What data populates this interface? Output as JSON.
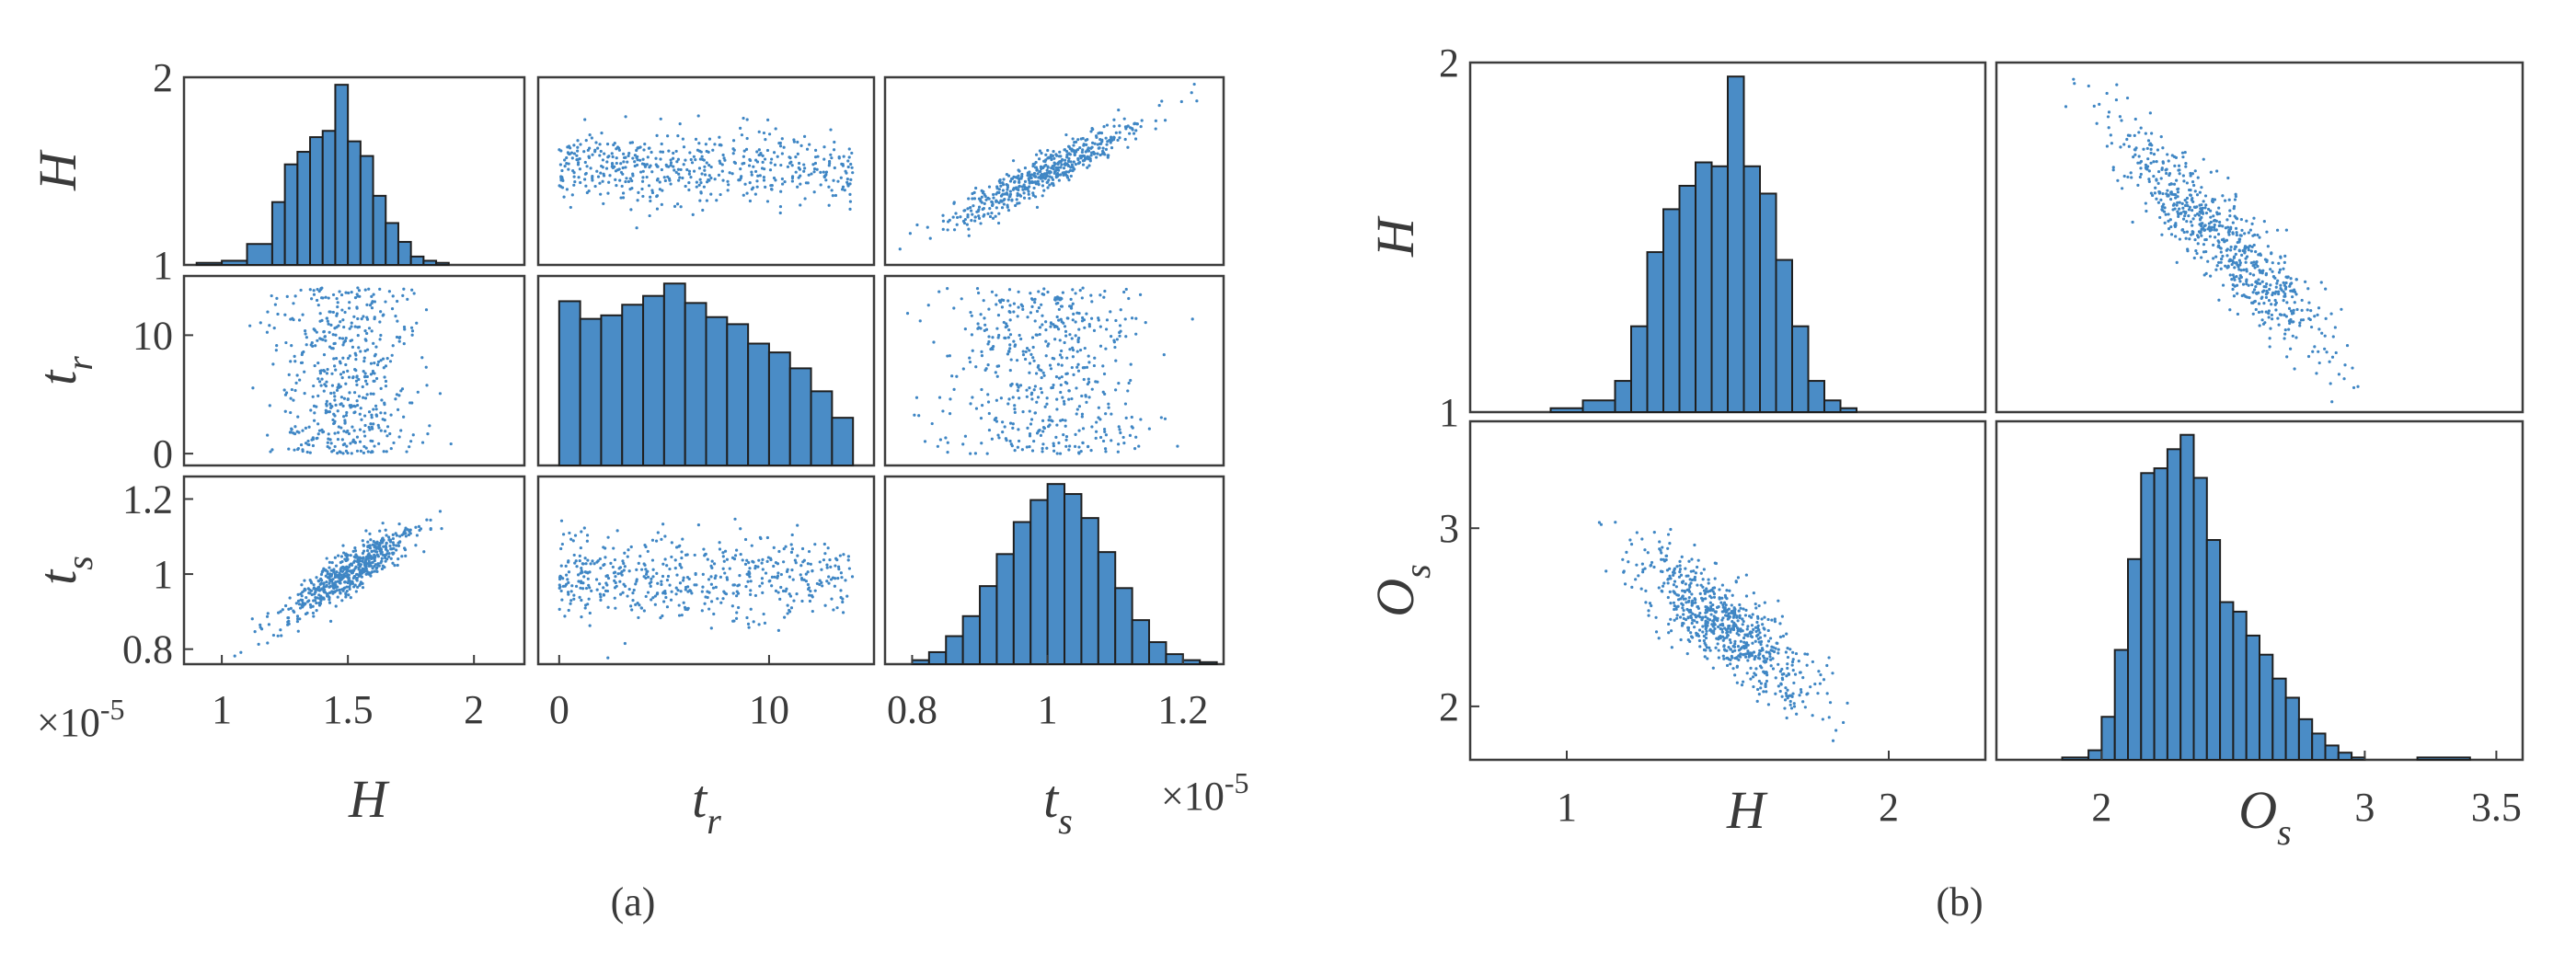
{
  "figure": {
    "caption_a": "(a)",
    "caption_b": "(b)"
  },
  "chart_data": [
    {
      "type": "scatter-matrix",
      "panel": "a",
      "variables": [
        "H",
        "tr",
        "ts"
      ],
      "axis_labels": [
        {
          "base": "H",
          "sub": ""
        },
        {
          "base": "t",
          "sub": "r"
        },
        {
          "base": "t",
          "sub": "s"
        }
      ],
      "multiplier_label": "×10",
      "multiplier_exponent": "-5",
      "ranges": {
        "H": [
          0.85,
          2.2
        ],
        "tr": [
          -1,
          15
        ],
        "ts": [
          0.76,
          1.26
        ]
      },
      "ticks": {
        "H_x": [
          "1",
          "1.5",
          "2"
        ],
        "H_y": [
          "1",
          "2"
        ],
        "tr_x": [
          "0",
          "10"
        ],
        "tr_y": [
          "0",
          "10"
        ],
        "ts_x": [
          "0.8",
          "1",
          "1.2"
        ],
        "ts_y": [
          "0.8",
          "1",
          "1.2"
        ]
      },
      "histograms": {
        "H": {
          "bins": [
            0.9,
            1.0,
            1.1,
            1.2,
            1.25,
            1.3,
            1.35,
            1.4,
            1.45,
            1.5,
            1.55,
            1.6,
            1.65,
            1.7,
            1.75,
            1.8,
            1.85,
            1.9,
            2.0
          ],
          "counts": [
            1,
            2,
            10,
            30,
            48,
            54,
            61,
            64,
            86,
            59,
            52,
            33,
            20,
            11,
            4,
            2,
            1,
            0
          ]
        },
        "tr": {
          "bins": [
            0,
            1,
            2,
            3,
            4,
            5,
            6,
            7,
            8,
            9,
            10,
            11,
            12,
            13,
            14
          ],
          "counts": [
            93,
            83,
            85,
            91,
            96,
            103,
            92,
            84,
            80,
            69,
            64,
            55,
            42,
            27
          ]
        },
        "ts": {
          "bins": [
            0.8,
            0.825,
            0.85,
            0.875,
            0.9,
            0.925,
            0.95,
            0.975,
            1.0,
            1.025,
            1.05,
            1.075,
            1.1,
            1.125,
            1.15,
            1.175,
            1.2,
            1.225,
            1.25
          ],
          "counts": [
            2,
            6,
            14,
            24,
            39,
            55,
            71,
            82,
            90,
            85,
            73,
            56,
            38,
            22,
            11,
            5,
            2,
            1
          ]
        }
      }
    },
    {
      "type": "scatter-matrix",
      "panel": "b",
      "variables": [
        "H",
        "Os"
      ],
      "axis_labels": [
        {
          "base": "H",
          "sub": ""
        },
        {
          "base": "O",
          "sub": "s"
        }
      ],
      "ranges": {
        "H": [
          0.7,
          2.3
        ],
        "Os": [
          1.6,
          3.6
        ]
      },
      "ticks": {
        "H_x": [
          "1",
          "2"
        ],
        "H_y": [
          "1",
          "2"
        ],
        "Os_x": [
          "2",
          "3",
          "3.5"
        ],
        "Os_y": [
          "2",
          "3"
        ]
      },
      "histograms": {
        "H": {
          "bins": [
            0.95,
            1.05,
            1.15,
            1.2,
            1.25,
            1.3,
            1.35,
            1.4,
            1.45,
            1.5,
            1.55,
            1.6,
            1.65,
            1.7,
            1.75,
            1.8,
            1.85,
            1.9,
            1.95,
            2.05
          ],
          "counts": [
            1,
            3,
            8,
            22,
            41,
            52,
            58,
            64,
            63,
            86,
            63,
            56,
            39,
            22,
            8,
            3,
            1,
            0,
            0
          ]
        },
        "Os": {
          "bins": [
            1.85,
            1.95,
            2.0,
            2.05,
            2.1,
            2.15,
            2.2,
            2.25,
            2.3,
            2.35,
            2.4,
            2.45,
            2.5,
            2.55,
            2.6,
            2.65,
            2.7,
            2.75,
            2.8,
            2.85,
            2.9,
            2.95,
            3.0,
            3.2,
            3.4
          ],
          "counts": [
            1,
            4,
            18,
            46,
            84,
            120,
            122,
            130,
            136,
            118,
            92,
            66,
            62,
            52,
            44,
            34,
            26,
            17,
            11,
            6,
            3,
            1,
            0,
            1
          ]
        }
      }
    }
  ]
}
